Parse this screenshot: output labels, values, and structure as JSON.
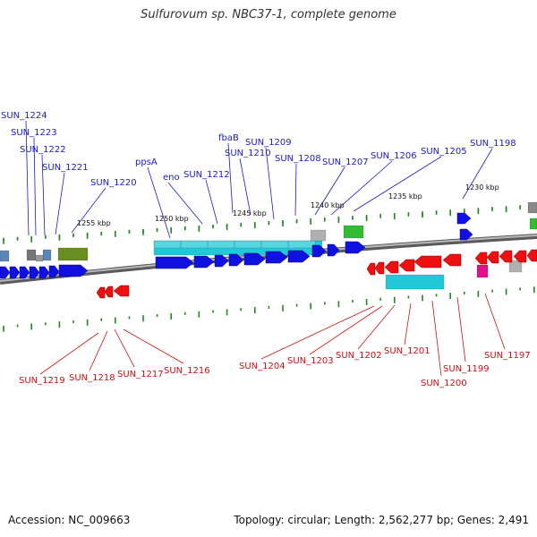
{
  "title": "Sulfurovum sp. NBC37-1, complete genome",
  "footer": {
    "accession": "Accession: NC_009663",
    "summary": "Topology: circular; Length: 2,562,277 bp; Genes: 2,491"
  },
  "colors": {
    "forward_label": "#1a1acc",
    "reverse_label": "#cc1010",
    "forward_gene": "#1010e0",
    "reverse_gene": "#ee1010",
    "tick": "#228822",
    "backbone": "#7a7a7a",
    "cyan": "#22c8d8",
    "olive": "#6b8e23",
    "grey": "#b0b0b0",
    "green": "#33bb33",
    "magenta": "#e0118a",
    "steel": "#5a87b8"
  },
  "scale_labels": [
    {
      "text": "1255 kbp"
    },
    {
      "text": "1250 kbp"
    },
    {
      "text": "1245 kbp"
    },
    {
      "text": "1240 kbp"
    },
    {
      "text": "1235 kbp"
    },
    {
      "text": "1230 kbp"
    }
  ],
  "forward_labels": [
    {
      "text": "SUN_1224"
    },
    {
      "text": "SUN_1223"
    },
    {
      "text": "SUN_1222"
    },
    {
      "text": "SUN_1221"
    },
    {
      "text": "SUN_1220"
    },
    {
      "text": "ppsA"
    },
    {
      "text": "eno"
    },
    {
      "text": "SUN_1212"
    },
    {
      "text": "fbaB"
    },
    {
      "text": "SUN_1210"
    },
    {
      "text": "SUN_1209"
    },
    {
      "text": "SUN_1208"
    },
    {
      "text": "SUN_1207"
    },
    {
      "text": "SUN_1206"
    },
    {
      "text": "SUN_1205"
    },
    {
      "text": "SUN_1198"
    }
  ],
  "reverse_labels": [
    {
      "text": "SUN_1219"
    },
    {
      "text": "SUN_1218"
    },
    {
      "text": "SUN_1217"
    },
    {
      "text": "SUN_1216"
    },
    {
      "text": "SUN_1204"
    },
    {
      "text": "SUN_1203"
    },
    {
      "text": "SUN_1202"
    },
    {
      "text": "SUN_1201"
    },
    {
      "text": "SUN_1200"
    },
    {
      "text": "SUN_1199"
    },
    {
      "text": "SUN_1197"
    }
  ]
}
